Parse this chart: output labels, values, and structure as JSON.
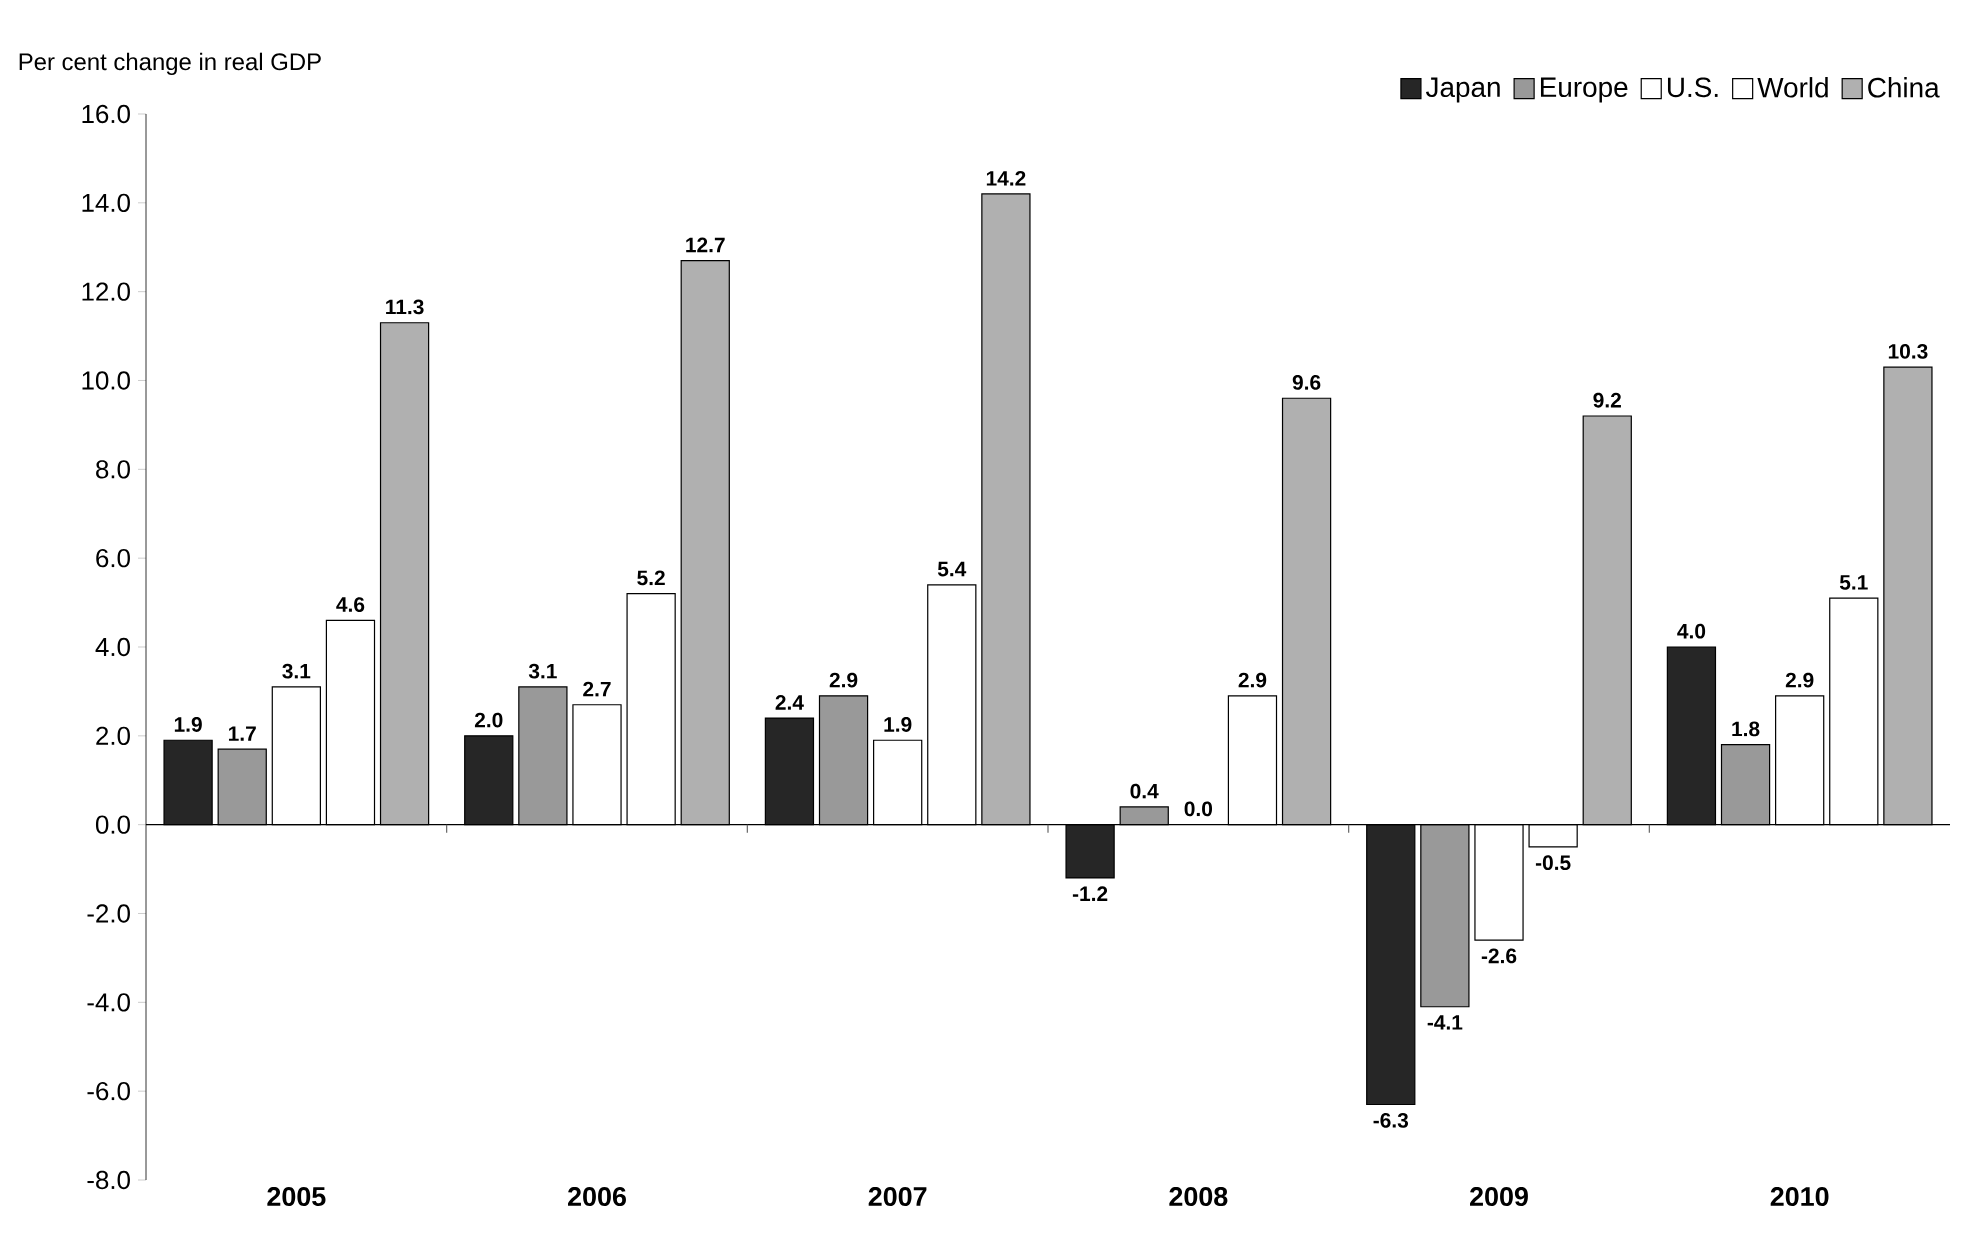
{
  "chart_data": {
    "type": "bar",
    "ylabel": "Per cent change in real GDP",
    "categories": [
      "2005",
      "2006",
      "2007",
      "2008",
      "2009",
      "2010"
    ],
    "series": [
      {
        "name": "Japan",
        "color": "#262626",
        "values": [
          1.9,
          2.0,
          2.4,
          -1.2,
          -6.3,
          4.0
        ],
        "value_labels": [
          "1.9",
          "2.0",
          "2.4",
          "-1.2",
          "-6.3",
          "4.0"
        ]
      },
      {
        "name": "Europe",
        "color": "#999999",
        "values": [
          1.7,
          3.1,
          2.9,
          0.4,
          -4.1,
          1.8
        ],
        "value_labels": [
          "1.7",
          "3.1",
          "2.9",
          "0.4",
          "-4.1",
          "1.8"
        ]
      },
      {
        "name": "U.S.",
        "color": "#ffffff",
        "values": [
          3.1,
          2.7,
          1.9,
          0.0,
          -2.6,
          2.9
        ],
        "value_labels": [
          "3.1",
          "2.7",
          "1.9",
          "0.0",
          "-2.6",
          "2.9"
        ]
      },
      {
        "name": "World",
        "color": "#ffffff",
        "values": [
          4.6,
          5.2,
          5.4,
          2.9,
          -0.5,
          5.1
        ],
        "value_labels": [
          "4.6",
          "5.2",
          "5.4",
          "2.9",
          "-0.5",
          "5.1"
        ]
      },
      {
        "name": "China",
        "color": "#b0b0b0",
        "values": [
          11.3,
          12.7,
          14.2,
          9.6,
          9.2,
          10.3
        ],
        "value_labels": [
          "11.3",
          "12.7",
          "14.2",
          "9.6",
          "9.2",
          "10.3"
        ]
      }
    ],
    "ylim": [
      -8,
      16
    ],
    "yticks": [
      {
        "value": -8,
        "label": "-8.0"
      },
      {
        "value": -6,
        "label": "-6.0"
      },
      {
        "value": -4,
        "label": "-4.0"
      },
      {
        "value": -2,
        "label": "-2.0"
      },
      {
        "value": 0,
        "label": "0.0"
      },
      {
        "value": 2,
        "label": "2.0"
      },
      {
        "value": 4,
        "label": "4.0"
      },
      {
        "value": 6,
        "label": "6.0"
      },
      {
        "value": 8,
        "label": "8.0"
      },
      {
        "value": 10,
        "label": "10.0"
      },
      {
        "value": 12,
        "label": "12.0"
      },
      {
        "value": 14,
        "label": "14.0"
      },
      {
        "value": 16,
        "label": "16.0"
      }
    ],
    "legend": "top right"
  }
}
